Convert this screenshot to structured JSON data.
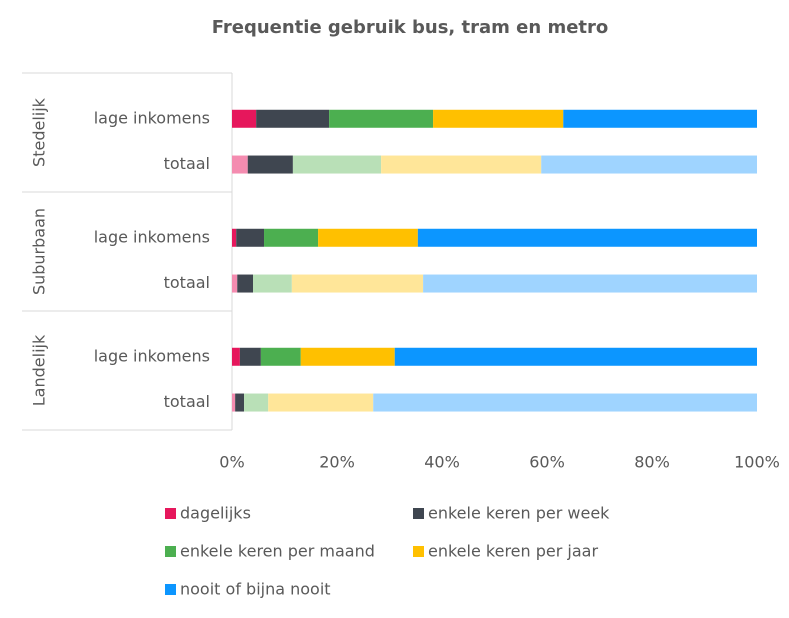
{
  "chart_data": {
    "type": "stacked_barh_percent",
    "title": "Frequentie gebruik bus, tram en metro",
    "groups": [
      {
        "name": "Stedelijk",
        "categories": [
          "lage inkomens",
          "totaal"
        ]
      },
      {
        "name": "Suburbaan",
        "categories": [
          "lage inkomens",
          "totaal"
        ]
      },
      {
        "name": "Landelijk",
        "categories": [
          "lage inkomens",
          "totaal"
        ]
      }
    ],
    "series": [
      {
        "name": "dagelijks",
        "colors": [
          "#e6175c",
          "#f48cb0",
          "#e6175c",
          "#f48cb0",
          "#e6175c",
          "#f48cb0"
        ],
        "values": [
          4.6,
          3.0,
          0.8,
          1.0,
          1.5,
          0.6
        ]
      },
      {
        "name": "enkele keren per week",
        "colors": [
          "#3f4650",
          "#3f4650",
          "#3f4650",
          "#3f4650",
          "#3f4650",
          "#3f4650"
        ],
        "values": [
          13.9,
          8.6,
          5.3,
          3.0,
          4.0,
          1.7
        ]
      },
      {
        "name": "enkele keren per maand",
        "colors": [
          "#4caf50",
          "#b9e0b7",
          "#4caf50",
          "#b9e0b7",
          "#4caf50",
          "#b9e0b7"
        ],
        "values": [
          19.8,
          16.8,
          10.3,
          7.4,
          7.6,
          4.6
        ]
      },
      {
        "name": "enkele keren per jaar",
        "colors": [
          "#ffc000",
          "#ffe699",
          "#ffc000",
          "#ffe699",
          "#ffc000",
          "#ffe699"
        ],
        "values": [
          24.8,
          30.5,
          19.0,
          25.0,
          17.9,
          20.0
        ]
      },
      {
        "name": "nooit of bijna nooit",
        "colors": [
          "#0c96ff",
          "#9fd4ff",
          "#0c96ff",
          "#9fd4ff",
          "#0c96ff",
          "#9fd4ff"
        ],
        "values": [
          36.9,
          41.1,
          64.6,
          63.6,
          69.0,
          73.1
        ]
      }
    ],
    "xlim": [
      0,
      100
    ],
    "xticks": [
      {
        "value": 0,
        "label": "0%"
      },
      {
        "value": 20,
        "label": "20%"
      },
      {
        "value": 40,
        "label": "40%"
      },
      {
        "value": 60,
        "label": "60%"
      },
      {
        "value": 80,
        "label": "80%"
      },
      {
        "value": 100,
        "label": "100%"
      }
    ],
    "grid": false
  }
}
